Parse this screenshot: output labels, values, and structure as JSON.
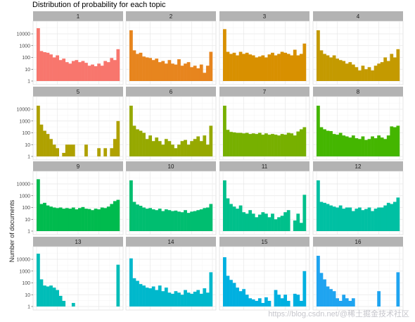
{
  "chart_data": {
    "type": "bar",
    "title": "Distribution of probability for each topic",
    "xlabel": "",
    "ylabel": "Number of documents",
    "y_scale": "log10",
    "ylim": [
      1,
      60000
    ],
    "y_ticks": [
      1,
      10,
      100,
      1000,
      10000
    ],
    "y_tick_labels": [
      "1",
      "10",
      "100",
      "1000",
      "10000"
    ],
    "grid": true,
    "facets": [
      {
        "label": "1",
        "color": "#F8766D",
        "values": [
          30000,
          350,
          280,
          250,
          180,
          100,
          150,
          60,
          80,
          40,
          30,
          50,
          60,
          40,
          50,
          35,
          20,
          25,
          18,
          30,
          20,
          50,
          40,
          90,
          60,
          500
        ]
      },
      {
        "label": "2",
        "color": "#E7851E",
        "values": [
          20000,
          400,
          200,
          250,
          120,
          100,
          90,
          60,
          80,
          40,
          50,
          30,
          60,
          30,
          25,
          70,
          20,
          30,
          40,
          15,
          20,
          12,
          25,
          5,
          20,
          300
        ]
      },
      {
        "label": "3",
        "color": "#D89000",
        "values": [
          25000,
          300,
          200,
          250,
          150,
          300,
          200,
          250,
          180,
          150,
          100,
          120,
          150,
          100,
          180,
          250,
          150,
          200,
          300,
          250,
          200,
          150,
          450,
          150,
          200,
          1500
        ]
      },
      {
        "label": "4",
        "color": "#C49A00",
        "values": [
          20000,
          400,
          200,
          150,
          100,
          150,
          80,
          60,
          50,
          30,
          40,
          25,
          15,
          8,
          20,
          10,
          15,
          8,
          20,
          30,
          40,
          100,
          50,
          200,
          100,
          500
        ]
      },
      {
        "label": "5",
        "color": "#AFA100",
        "values": [
          20000,
          500,
          150,
          80,
          30,
          10,
          5,
          1,
          2,
          10,
          10,
          10,
          1,
          1,
          1,
          10,
          1,
          1,
          1,
          5,
          1,
          5,
          1,
          5,
          30,
          1000
        ]
      },
      {
        "label": "6",
        "color": "#96A900",
        "values": [
          20000,
          400,
          200,
          150,
          100,
          30,
          60,
          20,
          40,
          20,
          10,
          30,
          20,
          10,
          5,
          10,
          20,
          25,
          10,
          20,
          30,
          50,
          20,
          60,
          10,
          400
        ]
      },
      {
        "label": "7",
        "color": "#77B000",
        "values": [
          20000,
          180,
          120,
          110,
          100,
          100,
          90,
          100,
          80,
          90,
          80,
          100,
          70,
          90,
          70,
          80,
          70,
          60,
          80,
          70,
          100,
          90,
          60,
          130,
          200,
          300
        ]
      },
      {
        "label": "8",
        "color": "#44B600",
        "values": [
          20000,
          300,
          200,
          150,
          140,
          80,
          70,
          100,
          60,
          50,
          40,
          60,
          35,
          30,
          50,
          25,
          30,
          50,
          35,
          60,
          40,
          30,
          60,
          350,
          300,
          400
        ]
      },
      {
        "label": "9",
        "color": "#00BB4E",
        "values": [
          25000,
          200,
          250,
          150,
          120,
          100,
          90,
          100,
          80,
          90,
          80,
          100,
          70,
          90,
          110,
          80,
          75,
          60,
          80,
          70,
          100,
          90,
          120,
          200,
          350,
          450
        ]
      },
      {
        "label": "10",
        "color": "#00BE70",
        "values": [
          20000,
          300,
          180,
          140,
          100,
          80,
          90,
          70,
          60,
          80,
          50,
          70,
          60,
          50,
          55,
          45,
          40,
          60,
          35,
          45,
          50,
          60,
          70,
          90,
          100,
          200
        ]
      },
      {
        "label": "11",
        "color": "#00C08B",
        "values": [
          20000,
          600,
          200,
          120,
          80,
          150,
          40,
          30,
          60,
          30,
          15,
          25,
          40,
          30,
          15,
          30,
          10,
          15,
          20,
          40,
          60,
          1,
          8,
          30,
          5,
          1200
        ]
      },
      {
        "label": "12",
        "color": "#00C0A3",
        "values": [
          20000,
          300,
          250,
          200,
          150,
          120,
          100,
          150,
          80,
          100,
          100,
          50,
          80,
          100,
          60,
          75,
          100,
          50,
          80,
          100,
          100,
          150,
          250,
          200,
          300,
          700
        ]
      },
      {
        "label": "13",
        "color": "#00BDB8",
        "values": [
          30000,
          200,
          60,
          50,
          60,
          40,
          25,
          8,
          3,
          1,
          1,
          2,
          1,
          1,
          1,
          1,
          1,
          1,
          1,
          1,
          1,
          1,
          1,
          1,
          1,
          3500
        ]
      },
      {
        "label": "14",
        "color": "#00B8CC",
        "values": [
          12000,
          250,
          150,
          80,
          60,
          40,
          35,
          50,
          25,
          60,
          20,
          40,
          15,
          12,
          20,
          15,
          10,
          25,
          15,
          12,
          18,
          25,
          12,
          35,
          15,
          800
        ]
      },
      {
        "label": "15",
        "color": "#00B0E0",
        "values": [
          15000,
          400,
          180,
          100,
          40,
          20,
          30,
          10,
          5,
          4,
          3,
          5,
          2,
          6,
          3,
          1,
          25,
          10,
          5,
          10,
          3,
          1,
          12,
          10,
          3,
          1000
        ]
      },
      {
        "label": "16",
        "color": "#1FA4F0",
        "values": [
          20000,
          700,
          200,
          50,
          30,
          20,
          5,
          3,
          10,
          5,
          3,
          5,
          1,
          1,
          1,
          1,
          1,
          1,
          1,
          20,
          1,
          1,
          1,
          1,
          1,
          800
        ]
      }
    ]
  },
  "watermark": "https://blog.csdn.net/@稀土掘金技术社区"
}
